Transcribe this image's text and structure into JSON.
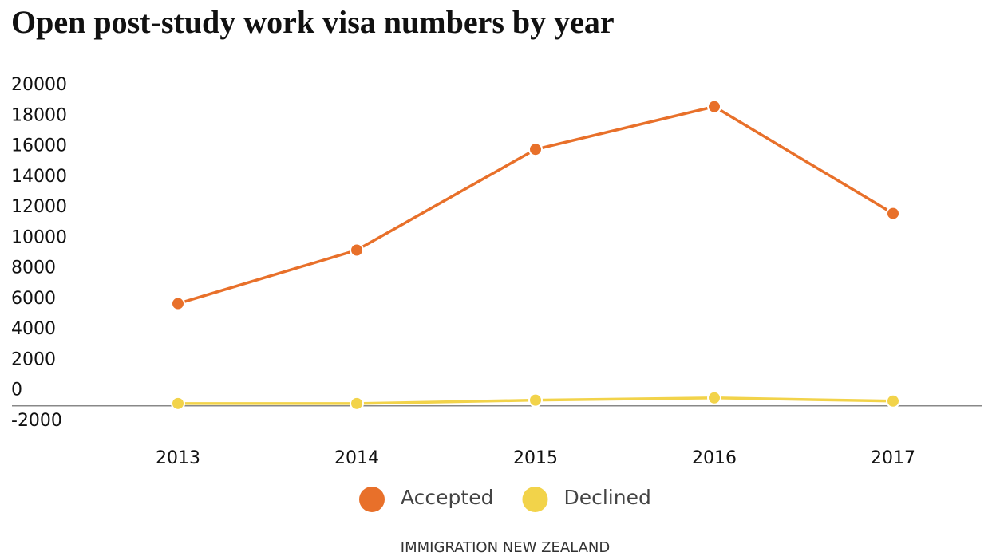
{
  "chart_data": {
    "type": "line",
    "title": "Open post-study work visa numbers by year",
    "categories": [
      "2013",
      "2014",
      "2015",
      "2016",
      "2017"
    ],
    "series": [
      {
        "name": "Accepted",
        "color": "#e8702a",
        "values": [
          6700,
          10200,
          16800,
          19600,
          12600
        ]
      },
      {
        "name": "Declined",
        "color": "#f2d34a",
        "values": [
          150,
          150,
          370,
          520,
          310
        ]
      }
    ],
    "ylim": [
      -2000,
      20000
    ],
    "yticks": [
      -2000,
      0,
      2000,
      4000,
      6000,
      8000,
      10000,
      12000,
      14000,
      16000,
      18000,
      20000
    ],
    "source": "IMMIGRATION NEW ZEALAND"
  }
}
